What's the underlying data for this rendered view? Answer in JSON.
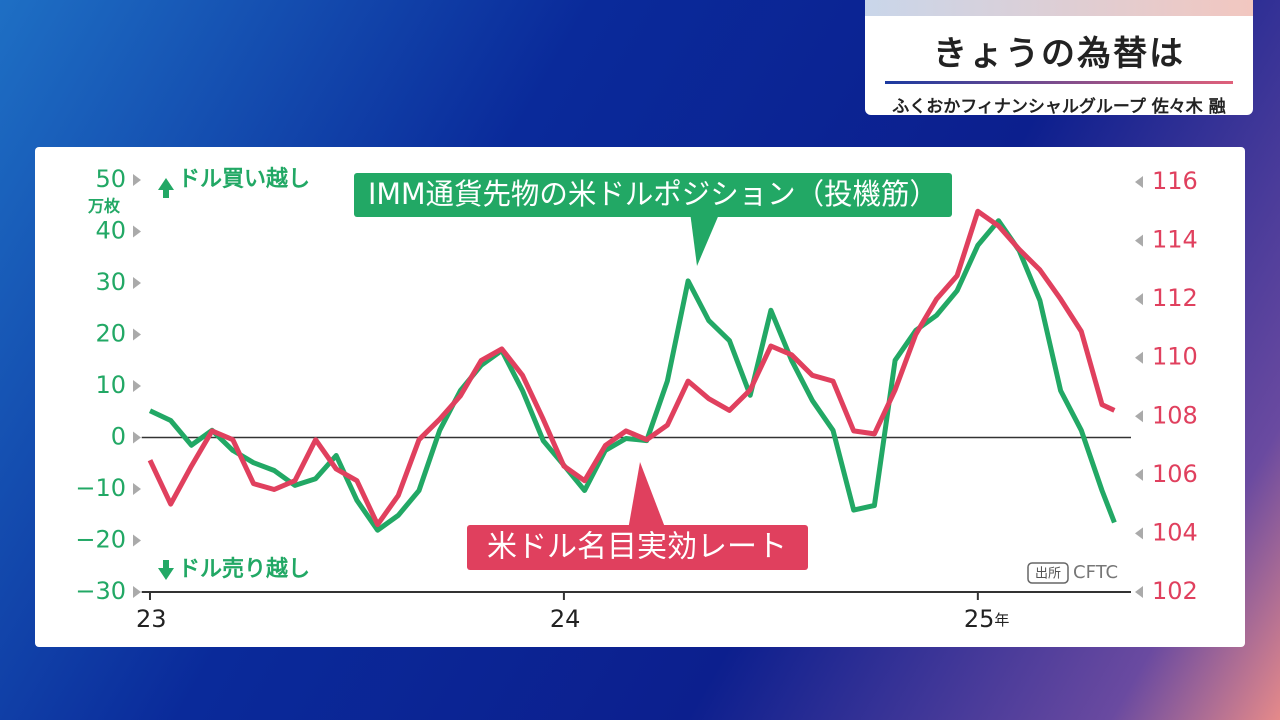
{
  "header": {
    "title": "きょうの為替は",
    "subtitle": "ふくおかフィナンシャルグループ 佐々木 融"
  },
  "chart_data": {
    "type": "line",
    "ylabel": "万枚",
    "buy_label": "ドル買い越し",
    "sell_label": "ドル売り越し",
    "source_label": "出所",
    "source": "CFTC",
    "x": [
      23.0,
      23.05,
      23.1,
      23.15,
      23.2,
      23.25,
      23.3,
      23.35,
      23.4,
      23.45,
      23.5,
      23.55,
      23.6,
      23.65,
      23.7,
      23.75,
      23.8,
      23.85,
      23.9,
      23.95,
      24.0,
      24.05,
      24.1,
      24.15,
      24.2,
      24.25,
      24.3,
      24.35,
      24.4,
      24.45,
      24.5,
      24.55,
      24.6,
      24.65,
      24.7,
      24.75,
      24.8,
      24.85,
      24.9,
      24.95,
      25.0,
      25.05,
      25.1,
      25.15,
      25.2,
      25.25,
      25.3,
      25.33
    ],
    "xlim": [
      22.98,
      25.37
    ],
    "xticks": [
      23,
      24,
      {
        "value": 25,
        "label": "25年"
      }
    ],
    "ylim": [
      -30,
      50
    ],
    "yticks": [
      {
        "value": -30,
        "label": "−30"
      },
      {
        "value": -20,
        "label": "−20"
      },
      {
        "value": -10,
        "label": "−10"
      },
      0,
      10,
      20,
      30,
      40,
      50
    ],
    "y2lim": [
      102,
      116
    ],
    "y2ticks": [
      102,
      104,
      106,
      108,
      110,
      112,
      114,
      116
    ],
    "series": [
      {
        "name": "IMM通貨先物の米ドルポジション（投機筋）",
        "color": "#22a865",
        "values": [
          5.2,
          3.3,
          -1.5,
          1.4,
          -2.5,
          -4.9,
          -6.4,
          -9.3,
          -8,
          -3.5,
          -12.2,
          -18,
          -15.1,
          -10.3,
          1.4,
          9.1,
          14,
          16.9,
          9.1,
          -0.6,
          -5.4,
          -10.3,
          -2.5,
          -0.2,
          -0.6,
          11,
          30.4,
          22.7,
          18.8,
          8.2,
          24.7,
          15,
          7.2,
          1.4,
          -14.1,
          -13.2,
          15,
          20.8,
          23.7,
          28.5,
          37.3,
          42.1,
          36.3,
          26.6,
          9.1,
          1.4,
          -10.3,
          -16.5
        ]
      },
      {
        "name": "米ドル名目実効レート",
        "color": "#e0405e",
        "axis": "y2",
        "values": [
          106.5,
          105.0,
          106.3,
          107.5,
          107.2,
          105.7,
          105.5,
          105.8,
          107.2,
          106.2,
          105.8,
          104.3,
          105.3,
          107.2,
          107.9,
          108.7,
          109.9,
          110.3,
          109.4,
          107.9,
          106.3,
          105.8,
          107.0,
          107.5,
          107.2,
          107.7,
          109.2,
          108.6,
          108.2,
          108.9,
          110.4,
          110.1,
          109.4,
          109.2,
          107.5,
          107.4,
          108.9,
          110.8,
          112.0,
          112.8,
          115.0,
          114.5,
          113.7,
          113.0,
          112.0,
          110.9,
          108.4,
          108.2
        ]
      }
    ]
  }
}
